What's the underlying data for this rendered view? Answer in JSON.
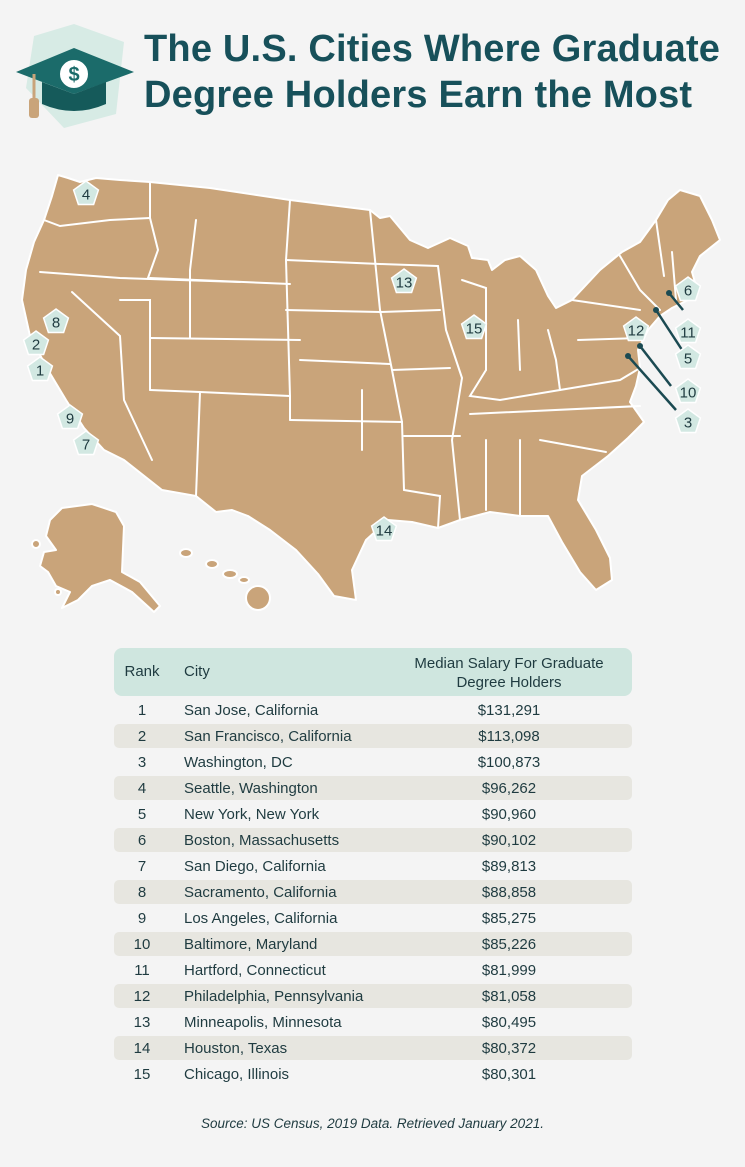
{
  "title": {
    "line1": "The U.S. Cities Where Graduate",
    "line2": "Degree Holders Earn the Most"
  },
  "logo": {
    "symbol": "$",
    "icon": "graduation-cap-dollar-icon"
  },
  "colors": {
    "title": "#17505a",
    "land": "#c9a47a",
    "marker": "#d2e8e2",
    "header_band": "#cfe6df",
    "stripe": "#e7e6e0",
    "background": "#f4f4f4"
  },
  "map": {
    "markers": [
      "4",
      "8",
      "2",
      "1",
      "9",
      "7",
      "13",
      "15",
      "14",
      "6",
      "12",
      "11",
      "5",
      "10",
      "3"
    ]
  },
  "table": {
    "headers": {
      "rank": "Rank",
      "city": "City",
      "salary_line1": "Median Salary For Graduate",
      "salary_line2": "Degree Holders"
    },
    "rows": [
      {
        "rank": "1",
        "city": "San Jose, California",
        "salary": "$131,291"
      },
      {
        "rank": "2",
        "city": "San Francisco, California",
        "salary": "$113,098"
      },
      {
        "rank": "3",
        "city": "Washington, DC",
        "salary": "$100,873"
      },
      {
        "rank": "4",
        "city": "Seattle, Washington",
        "salary": "$96,262"
      },
      {
        "rank": "5",
        "city": "New York, New York",
        "salary": "$90,960"
      },
      {
        "rank": "6",
        "city": "Boston, Massachusetts",
        "salary": "$90,102"
      },
      {
        "rank": "7",
        "city": "San Diego, California",
        "salary": "$89,813"
      },
      {
        "rank": "8",
        "city": "Sacramento, California",
        "salary": "$88,858"
      },
      {
        "rank": "9",
        "city": "Los Angeles, California",
        "salary": "$85,275"
      },
      {
        "rank": "10",
        "city": "Baltimore, Maryland",
        "salary": "$85,226"
      },
      {
        "rank": "11",
        "city": "Hartford, Connecticut",
        "salary": "$81,999"
      },
      {
        "rank": "12",
        "city": "Philadelphia, Pennsylvania",
        "salary": "$81,058"
      },
      {
        "rank": "13",
        "city": "Minneapolis, Minnesota",
        "salary": "$80,495"
      },
      {
        "rank": "14",
        "city": "Houston, Texas",
        "salary": "$80,372"
      },
      {
        "rank": "15",
        "city": "Chicago, Illinois",
        "salary": "$80,301"
      }
    ]
  },
  "source": "Source: US Census, 2019 Data. Retrieved January 2021."
}
